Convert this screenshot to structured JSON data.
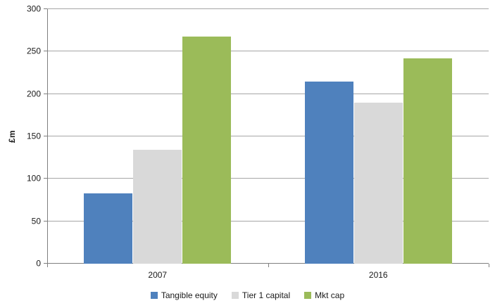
{
  "chart_data": {
    "type": "bar",
    "title": "",
    "ylabel": "£m",
    "xlabel": "",
    "categories": [
      "2007",
      "2016"
    ],
    "series": [
      {
        "name": "Tangible equity",
        "color": "#4f81bd",
        "values": [
          83,
          215
        ]
      },
      {
        "name": "Tier 1 capital",
        "color": "#d9d9d9",
        "values": [
          134,
          190
        ]
      },
      {
        "name": "Mkt cap",
        "color": "#9bbb59",
        "values": [
          268,
          242
        ]
      }
    ],
    "ylim": [
      0,
      300
    ],
    "yticks": [
      0,
      50,
      100,
      150,
      200,
      250,
      300
    ],
    "grid": "horizontal",
    "legend_position": "bottom",
    "colors": {
      "gridline": "#a6a6a6",
      "axis": "#7f7f7f",
      "text": "#1a1a1a",
      "background": "#ffffff"
    }
  }
}
